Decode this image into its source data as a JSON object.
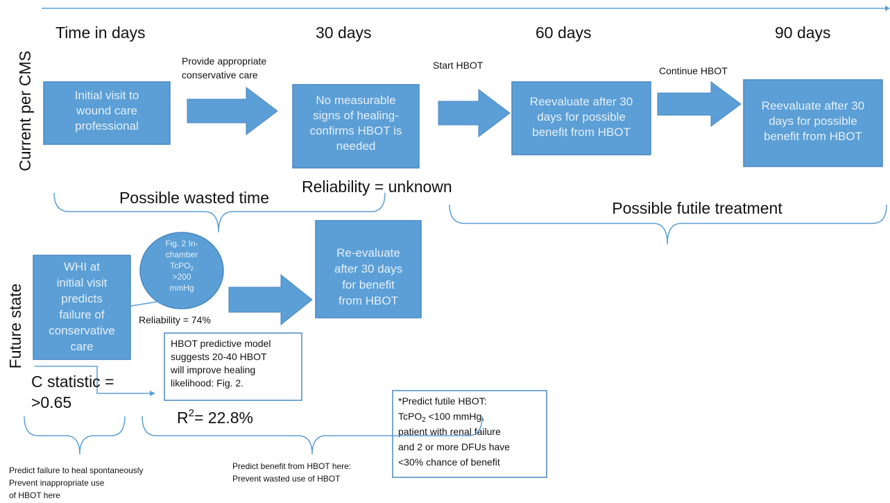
{
  "row_labels": {
    "current": "Current per CMS",
    "future": "Future state"
  },
  "timeline": [
    "Time in days",
    "30 days",
    "60 days",
    "90 days"
  ],
  "steps": {
    "conservative": [
      "Provide appropriate",
      "conservative care"
    ],
    "start": "Start HBOT",
    "continue": "Continue HBOT"
  },
  "current_boxes": [
    [
      "Initial visit to",
      "wound care",
      "professional"
    ],
    [
      "No measurable",
      "signs of healing-",
      "confirms HBOT is",
      "needed"
    ],
    [
      "Reevaluate after 30",
      "days for possible",
      "benefit  from HBOT"
    ],
    [
      "Reevaluate after 30",
      "days for possible",
      "benefit  from HBOT"
    ]
  ],
  "reliability_unknown": "Reliability = unknown",
  "braces": {
    "wasted": "Possible wasted time",
    "futile": "Possible futile treatment"
  },
  "future": {
    "whi_box": [
      "WHI at",
      "initial visit",
      "predicts",
      "failure of",
      "conservative",
      "care"
    ],
    "ellipse": {
      "lines": [
        "Fig. 2 In-",
        "chamber"
      ],
      "tcpo": "TcPO",
      "sub": "2",
      "rest": [
        ">200",
        "mmHg"
      ]
    },
    "reliability": "Reliability = 74%",
    "reeval_box": [
      "Re-evaluate",
      "after 30 days",
      "for benefit",
      "from HBOT"
    ],
    "model_box": [
      "HBOT predictive model",
      "suggests 20-40 HBOT",
      "will improve healing",
      "likelihood: Fig. 2."
    ],
    "c_statistic": [
      "C statistic =",
      ">0.65"
    ],
    "r2": {
      "base": "R",
      "sup": "2",
      "rest": "= 22.8%"
    },
    "futile_box": {
      "line1": "*Predict futile HBOT:",
      "tcpo": "TcPO",
      "sub": "2",
      "tcpo_rest": " <100 mmHg,",
      "lines": [
        "patient with renal failure",
        "and 2 or more DFUs have",
        "<30% chance of benefit"
      ]
    }
  },
  "notes": {
    "left": [
      "Predict failure to heal spontaneously",
      "Prevent inappropriate use",
      "of HBOT here"
    ],
    "middle": [
      "Predict benefit from HBOT here:",
      "Prevent wasted use of HBOT"
    ]
  }
}
